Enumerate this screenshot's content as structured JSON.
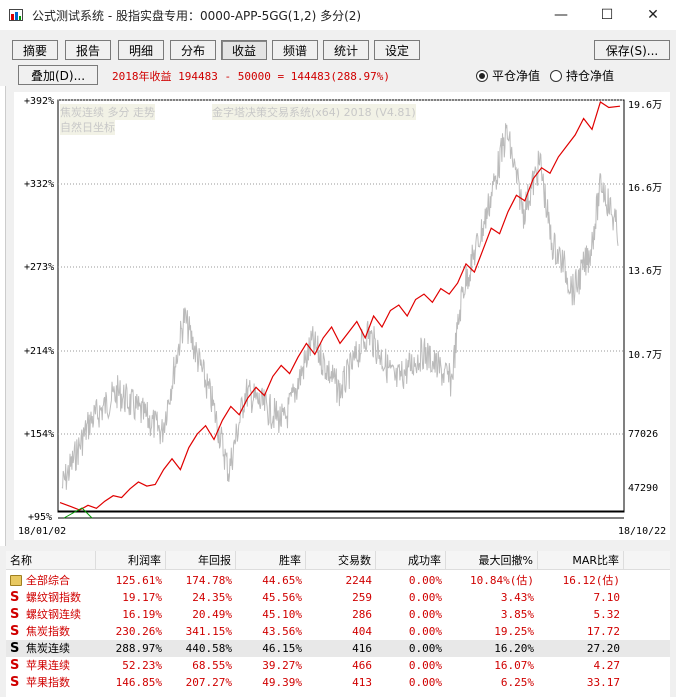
{
  "window": {
    "title": "公式测试系统 - 股指实盘专用：0000-APP-5GG(1,2) 多分(2)",
    "minimize": "—",
    "maximize": "☐",
    "close": "✕"
  },
  "tabs": [
    {
      "label": "摘要",
      "active": false
    },
    {
      "label": "报告",
      "active": false
    },
    {
      "label": "明细",
      "active": false
    },
    {
      "label": "分布",
      "active": false
    },
    {
      "label": "收益",
      "active": true
    },
    {
      "label": "频谱",
      "active": false
    },
    {
      "label": "统计",
      "active": false
    },
    {
      "label": "设定",
      "active": false
    }
  ],
  "save_label": "保存(S)...",
  "overlay_label": "叠加(D)...",
  "summary_text": "2018年收益 194483 - 50000 = 144483(288.97%)",
  "radio": {
    "option1": "平仓净值",
    "option2": "持仓净值",
    "selected": "平仓净值"
  },
  "chart_data": {
    "type": "line",
    "watermark_left": [
      "焦炭连续 多分 走势",
      "自然日坐标"
    ],
    "watermark_center": "金字塔决策交易系统(x64) 2018 (V4.81)",
    "left_ticks": [
      "+392%",
      "+332%",
      "+273%",
      "+214%",
      "+154%",
      "+95%"
    ],
    "right_ticks": [
      "19.6万",
      "16.6万",
      "13.6万",
      "10.7万",
      "77026",
      "47290"
    ],
    "x_start": "18/01/02",
    "x_end": "18/10/22",
    "equity_color": "#e00000",
    "price_color": "#bbbbbb",
    "equity_series": [
      {
        "t": 0.0,
        "v": 50000
      },
      {
        "t": 0.02,
        "v": 48500
      },
      {
        "t": 0.035,
        "v": 47290
      },
      {
        "t": 0.05,
        "v": 49000
      },
      {
        "t": 0.065,
        "v": 47900
      },
      {
        "t": 0.08,
        "v": 50500
      },
      {
        "t": 0.095,
        "v": 52500
      },
      {
        "t": 0.11,
        "v": 51800
      },
      {
        "t": 0.125,
        "v": 55000
      },
      {
        "t": 0.14,
        "v": 57500
      },
      {
        "t": 0.155,
        "v": 56000
      },
      {
        "t": 0.17,
        "v": 56600
      },
      {
        "t": 0.185,
        "v": 62000
      },
      {
        "t": 0.2,
        "v": 66000
      },
      {
        "t": 0.215,
        "v": 62000
      },
      {
        "t": 0.23,
        "v": 70000
      },
      {
        "t": 0.245,
        "v": 75000
      },
      {
        "t": 0.26,
        "v": 78000
      },
      {
        "t": 0.275,
        "v": 73000
      },
      {
        "t": 0.29,
        "v": 80000
      },
      {
        "t": 0.305,
        "v": 85000
      },
      {
        "t": 0.32,
        "v": 82000
      },
      {
        "t": 0.335,
        "v": 88000
      },
      {
        "t": 0.35,
        "v": 92000
      },
      {
        "t": 0.365,
        "v": 89000
      },
      {
        "t": 0.38,
        "v": 96000
      },
      {
        "t": 0.395,
        "v": 100000
      },
      {
        "t": 0.41,
        "v": 97000
      },
      {
        "t": 0.425,
        "v": 103000
      },
      {
        "t": 0.44,
        "v": 108000
      },
      {
        "t": 0.455,
        "v": 104000
      },
      {
        "t": 0.47,
        "v": 110000
      },
      {
        "t": 0.485,
        "v": 114000
      },
      {
        "t": 0.5,
        "v": 108000
      },
      {
        "t": 0.515,
        "v": 112000
      },
      {
        "t": 0.53,
        "v": 116000
      },
      {
        "t": 0.545,
        "v": 110000
      },
      {
        "t": 0.56,
        "v": 118000
      },
      {
        "t": 0.575,
        "v": 114000
      },
      {
        "t": 0.59,
        "v": 120000
      },
      {
        "t": 0.605,
        "v": 122000
      },
      {
        "t": 0.62,
        "v": 118000
      },
      {
        "t": 0.635,
        "v": 124000
      },
      {
        "t": 0.65,
        "v": 126000
      },
      {
        "t": 0.665,
        "v": 123000
      },
      {
        "t": 0.68,
        "v": 128000
      },
      {
        "t": 0.695,
        "v": 126000
      },
      {
        "t": 0.71,
        "v": 130000
      },
      {
        "t": 0.725,
        "v": 137000
      },
      {
        "t": 0.74,
        "v": 134000
      },
      {
        "t": 0.755,
        "v": 142000
      },
      {
        "t": 0.77,
        "v": 150000
      },
      {
        "t": 0.785,
        "v": 148000
      },
      {
        "t": 0.8,
        "v": 156000
      },
      {
        "t": 0.815,
        "v": 162000
      },
      {
        "t": 0.83,
        "v": 160000
      },
      {
        "t": 0.845,
        "v": 168000
      },
      {
        "t": 0.86,
        "v": 172000
      },
      {
        "t": 0.875,
        "v": 170000
      },
      {
        "t": 0.89,
        "v": 176000
      },
      {
        "t": 0.905,
        "v": 180000
      },
      {
        "t": 0.92,
        "v": 184000
      },
      {
        "t": 0.935,
        "v": 190000
      },
      {
        "t": 0.95,
        "v": 186000
      },
      {
        "t": 0.965,
        "v": 196000
      },
      {
        "t": 0.98,
        "v": 194000
      },
      {
        "t": 1.0,
        "v": 194483
      }
    ]
  },
  "table": {
    "columns": [
      "名称",
      "利润率",
      "年回报",
      "胜率",
      "交易数",
      "成功率",
      "最大回撤%",
      "MAR比率"
    ],
    "rows": [
      {
        "icon": "folder",
        "name": "全部综合",
        "profit": "125.61%",
        "annual": "174.78%",
        "win": "44.65%",
        "trades": "2244",
        "success": "0.00%",
        "drawdown": "10.84%(估)",
        "mar": "16.12(估)",
        "selected": false
      },
      {
        "icon": "S",
        "name": "螺纹钢指数",
        "profit": "19.17%",
        "annual": "24.35%",
        "win": "45.56%",
        "trades": "259",
        "success": "0.00%",
        "drawdown": "3.43%",
        "mar": "7.10",
        "selected": false
      },
      {
        "icon": "S",
        "name": "螺纹钢连续",
        "profit": "16.19%",
        "annual": "20.49%",
        "win": "45.10%",
        "trades": "286",
        "success": "0.00%",
        "drawdown": "3.85%",
        "mar": "5.32",
        "selected": false
      },
      {
        "icon": "S",
        "name": "焦炭指数",
        "profit": "230.26%",
        "annual": "341.15%",
        "win": "43.56%",
        "trades": "404",
        "success": "0.00%",
        "drawdown": "19.25%",
        "mar": "17.72",
        "selected": false
      },
      {
        "icon": "S",
        "name": "焦炭连续",
        "profit": "288.97%",
        "annual": "440.58%",
        "win": "46.15%",
        "trades": "416",
        "success": "0.00%",
        "drawdown": "16.20%",
        "mar": "27.20",
        "selected": true
      },
      {
        "icon": "S",
        "name": "苹果连续",
        "profit": "52.23%",
        "annual": "68.55%",
        "win": "39.27%",
        "trades": "466",
        "success": "0.00%",
        "drawdown": "16.07%",
        "mar": "4.27",
        "selected": false
      },
      {
        "icon": "S",
        "name": "苹果指数",
        "profit": "146.85%",
        "annual": "207.27%",
        "win": "49.39%",
        "trades": "413",
        "success": "0.00%",
        "drawdown": "6.25%",
        "mar": "33.17",
        "selected": false
      }
    ]
  }
}
